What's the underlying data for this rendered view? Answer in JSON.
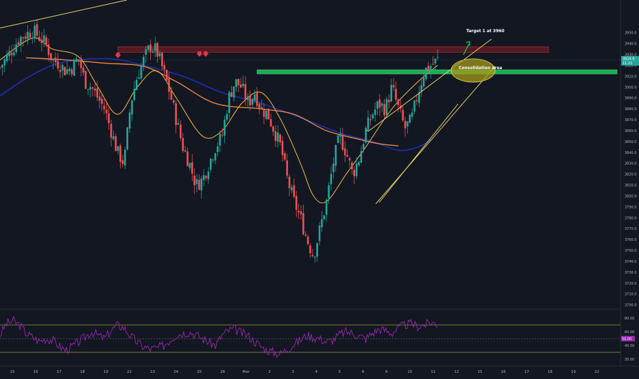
{
  "colors": {
    "background": "#131722",
    "grid": "#1e222d",
    "up_candle": "#26a69a",
    "down_candle": "#ef5350",
    "ma_fast": "#e3b341",
    "ma_slow": "#f0883e",
    "ma_long": "#1f2fb8",
    "resistance_zone": "#8b1d24",
    "support_line": "#22c55e",
    "channel": "#e6d36b",
    "rsi_line": "#9c27b0",
    "marker_arrow": "#f23645"
  },
  "chart_data": [
    {
      "type": "candlestick",
      "title": "",
      "x_ticks": [
        "15",
        "16",
        "17",
        "18",
        "19",
        "22",
        "23",
        "24",
        "25",
        "26",
        "Mar",
        "2",
        "3",
        "4",
        "5",
        "8",
        "9",
        "10",
        "11",
        "12",
        "15",
        "16",
        "17",
        "18",
        "19",
        "22"
      ],
      "y_ticks": [
        "3950.0",
        "3940.0",
        "3930.0",
        "3920.0",
        "3910.0",
        "3900.0",
        "3890.0",
        "3880.0",
        "3870.0",
        "3860.0",
        "3850.0",
        "3840.0",
        "3830.0",
        "3820.0",
        "3810.0",
        "3800.0",
        "3790.0",
        "3780.0",
        "3770.0",
        "3760.0",
        "3750.0",
        "3740.0",
        "3730.0",
        "3720.0",
        "3710.0",
        "3700.0"
      ],
      "y_range": [
        3696,
        3980
      ],
      "price_tag": "3924.8",
      "time_tag": "11:21",
      "annotations": {
        "target": "Target 1 at 3960",
        "consolidation": "Consolidation area"
      },
      "resistance_zone": [
        3932,
        3937
      ],
      "support_level": 3914,
      "price_path": [
        [
          0,
          3918
        ],
        [
          3,
          3945
        ],
        [
          5,
          3952
        ],
        [
          7,
          3940
        ],
        [
          8,
          3925
        ],
        [
          9,
          3922
        ],
        [
          10,
          3915
        ],
        [
          11,
          3918
        ],
        [
          12,
          3927
        ],
        [
          13,
          3905
        ],
        [
          14,
          3900
        ],
        [
          15,
          3890
        ],
        [
          16,
          3880
        ],
        [
          17,
          3860
        ],
        [
          18,
          3840
        ],
        [
          19,
          3830
        ],
        [
          20,
          3885
        ],
        [
          21,
          3910
        ],
        [
          22,
          3925
        ],
        [
          23,
          3938
        ],
        [
          24,
          3933
        ],
        [
          25,
          3915
        ],
        [
          26,
          3895
        ],
        [
          27,
          3870
        ],
        [
          28,
          3845
        ],
        [
          29,
          3830
        ],
        [
          30,
          3810
        ],
        [
          31,
          3815
        ],
        [
          32,
          3830
        ],
        [
          33,
          3845
        ],
        [
          34,
          3855
        ],
        [
          35,
          3890
        ],
        [
          36,
          3905
        ],
        [
          37,
          3900
        ],
        [
          38,
          3885
        ],
        [
          39,
          3895
        ],
        [
          40,
          3880
        ],
        [
          41,
          3875
        ],
        [
          42,
          3860
        ],
        [
          43,
          3845
        ],
        [
          44,
          3815
        ],
        [
          45,
          3795
        ],
        [
          46,
          3780
        ],
        [
          47,
          3760
        ],
        [
          48,
          3745
        ],
        [
          49,
          3770
        ],
        [
          50,
          3795
        ],
        [
          51,
          3830
        ],
        [
          52,
          3855
        ],
        [
          53,
          3840
        ],
        [
          54,
          3820
        ],
        [
          55,
          3835
        ],
        [
          56,
          3860
        ],
        [
          57,
          3875
        ],
        [
          58,
          3885
        ],
        [
          59,
          3880
        ],
        [
          60,
          3900
        ],
        [
          61,
          3880
        ],
        [
          62,
          3862
        ],
        [
          63,
          3870
        ],
        [
          64,
          3895
        ],
        [
          65,
          3915
        ],
        [
          66,
          3920
        ],
        [
          67,
          3925
        ]
      ],
      "ma_fast": [
        [
          0,
          3925
        ],
        [
          5,
          3945
        ],
        [
          8,
          3935
        ],
        [
          12,
          3928
        ],
        [
          15,
          3900
        ],
        [
          18,
          3875
        ],
        [
          21,
          3900
        ],
        [
          24,
          3915
        ],
        [
          27,
          3890
        ],
        [
          31,
          3855
        ],
        [
          34,
          3860
        ],
        [
          37,
          3885
        ],
        [
          40,
          3895
        ],
        [
          43,
          3870
        ],
        [
          46,
          3830
        ],
        [
          48,
          3800
        ],
        [
          50,
          3795
        ],
        [
          53,
          3820
        ],
        [
          56,
          3845
        ],
        [
          60,
          3880
        ],
        [
          64,
          3905
        ],
        [
          67,
          3920
        ]
      ],
      "ma_slow": [
        [
          4,
          3927
        ],
        [
          10,
          3925
        ],
        [
          16,
          3922
        ],
        [
          22,
          3919
        ],
        [
          27,
          3905
        ],
        [
          33,
          3885
        ],
        [
          40,
          3880
        ],
        [
          45,
          3875
        ],
        [
          50,
          3860
        ],
        [
          55,
          3852
        ],
        [
          58,
          3848
        ],
        [
          61,
          3846
        ]
      ],
      "ma_long": [
        [
          0,
          3892
        ],
        [
          4,
          3908
        ],
        [
          8,
          3920
        ],
        [
          12,
          3925
        ],
        [
          17,
          3926
        ],
        [
          22,
          3920
        ],
        [
          28,
          3910
        ],
        [
          34,
          3895
        ],
        [
          40,
          3885
        ],
        [
          46,
          3872
        ],
        [
          52,
          3858
        ],
        [
          57,
          3850
        ],
        [
          61,
          3842
        ],
        [
          64,
          3845
        ],
        [
          66,
          3852
        ]
      ],
      "x_domain": [
        0,
        95
      ]
    },
    {
      "type": "line",
      "title": "",
      "y_ticks": [
        "80.00",
        "60.00",
        "40.00",
        "20.00"
      ],
      "y_range": [
        10,
        90
      ],
      "levels": [
        70,
        50,
        30
      ],
      "value_tag": "50.00",
      "rsi": [
        55,
        72,
        76,
        70,
        58,
        52,
        46,
        50,
        48,
        40,
        33,
        38,
        45,
        52,
        60,
        55,
        50,
        62,
        70,
        66,
        54,
        45,
        38,
        35,
        36,
        40,
        48,
        56,
        58,
        60,
        56,
        50,
        45,
        40,
        55,
        62,
        64,
        58,
        54,
        46,
        38,
        33,
        30,
        28,
        35,
        42,
        48,
        55,
        52,
        50,
        45,
        48,
        56,
        60,
        58,
        54,
        50,
        58,
        64,
        62,
        58,
        66,
        70,
        72,
        68,
        70,
        74,
        71
      ]
    }
  ]
}
